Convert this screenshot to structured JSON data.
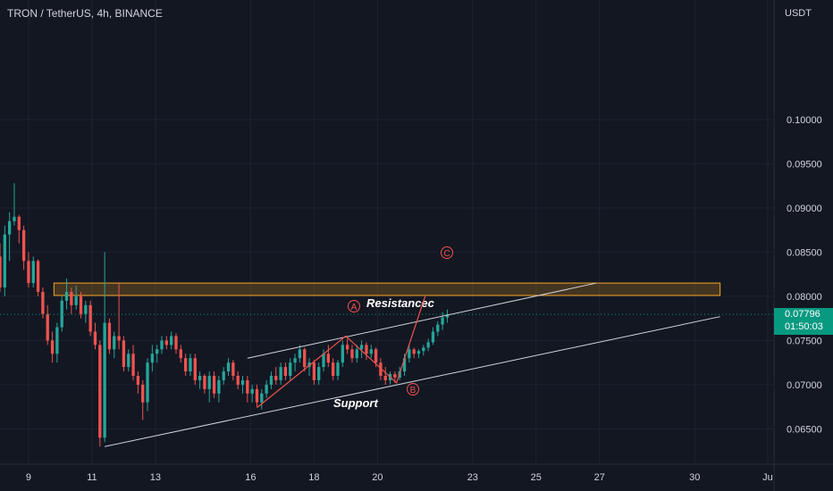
{
  "header": {
    "title": "TRON / TetherUS, 4h, BINANCE"
  },
  "axis": {
    "currency": "USDT"
  },
  "current_price": {
    "value": "0.07796",
    "countdown": "01:50:03"
  },
  "colors": {
    "background": "#131722",
    "up": "#26a69a",
    "down": "#ef5350",
    "zone": "#f5a623",
    "line": "#d1d4dc",
    "label_bg": "#089981"
  },
  "chart_data": {
    "type": "candlestick",
    "title": "TRON / TetherUS, 4h, BINANCE",
    "ylim": [
      0.061,
      0.1105
    ],
    "y_ticks": [
      "0.10000",
      "0.09500",
      "0.09000",
      "0.08500",
      "0.08000",
      "0.07500",
      "0.07000",
      "0.06500"
    ],
    "x_ticks": [
      "9",
      "11",
      "13",
      "16",
      "18",
      "20",
      "23",
      "25",
      "27",
      "30",
      "Ju"
    ],
    "x_ticks_day": [
      9,
      11,
      13,
      16,
      18,
      20,
      23,
      25,
      27,
      30,
      32.3
    ],
    "xlim": [
      8.1,
      32.5
    ],
    "candle_width_days": 0.11,
    "candles": [
      [
        8.1,
        0.0845,
        0.086,
        0.0805,
        0.081
      ],
      [
        8.25,
        0.081,
        0.088,
        0.08,
        0.087
      ],
      [
        8.4,
        0.087,
        0.0895,
        0.084,
        0.0885
      ],
      [
        8.55,
        0.0885,
        0.0928,
        0.088,
        0.089
      ],
      [
        8.7,
        0.089,
        0.0892,
        0.086,
        0.0875
      ],
      [
        8.85,
        0.0875,
        0.088,
        0.083,
        0.084
      ],
      [
        9.0,
        0.084,
        0.085,
        0.081,
        0.0815
      ],
      [
        9.15,
        0.0815,
        0.0845,
        0.081,
        0.084
      ],
      [
        9.3,
        0.084,
        0.0842,
        0.08,
        0.0805
      ],
      [
        9.45,
        0.0805,
        0.081,
        0.0775,
        0.078
      ],
      [
        9.6,
        0.078,
        0.079,
        0.0745,
        0.075
      ],
      [
        9.75,
        0.075,
        0.076,
        0.0725,
        0.0735
      ],
      [
        9.9,
        0.0735,
        0.077,
        0.0725,
        0.0765
      ],
      [
        10.05,
        0.0765,
        0.08,
        0.076,
        0.0795
      ],
      [
        10.2,
        0.0795,
        0.082,
        0.0785,
        0.0805
      ],
      [
        10.35,
        0.0805,
        0.081,
        0.078,
        0.079
      ],
      [
        10.5,
        0.079,
        0.0812,
        0.0785,
        0.08
      ],
      [
        10.65,
        0.08,
        0.0805,
        0.0775,
        0.078
      ],
      [
        10.8,
        0.078,
        0.0795,
        0.077,
        0.079
      ],
      [
        10.95,
        0.079,
        0.0795,
        0.0755,
        0.076
      ],
      [
        11.1,
        0.076,
        0.077,
        0.074,
        0.0745
      ],
      [
        11.25,
        0.0745,
        0.075,
        0.063,
        0.064
      ],
      [
        11.4,
        0.064,
        0.085,
        0.0635,
        0.077
      ],
      [
        11.55,
        0.077,
        0.0775,
        0.0735,
        0.074
      ],
      [
        11.7,
        0.074,
        0.076,
        0.073,
        0.0755
      ],
      [
        11.85,
        0.0755,
        0.0815,
        0.074,
        0.075
      ],
      [
        12.0,
        0.075,
        0.0755,
        0.0715,
        0.072
      ],
      [
        12.15,
        0.072,
        0.074,
        0.0715,
        0.0735
      ],
      [
        12.3,
        0.0735,
        0.0745,
        0.0705,
        0.071
      ],
      [
        12.45,
        0.071,
        0.0715,
        0.069,
        0.07
      ],
      [
        12.6,
        0.07,
        0.0705,
        0.066,
        0.068
      ],
      [
        12.75,
        0.068,
        0.073,
        0.067,
        0.0725
      ],
      [
        12.9,
        0.0725,
        0.0745,
        0.0715,
        0.0735
      ],
      [
        13.05,
        0.0735,
        0.0745,
        0.0725,
        0.074
      ],
      [
        13.2,
        0.074,
        0.0755,
        0.0735,
        0.075
      ],
      [
        13.35,
        0.075,
        0.0755,
        0.074,
        0.0745
      ],
      [
        13.5,
        0.0745,
        0.076,
        0.074,
        0.0755
      ],
      [
        13.65,
        0.0755,
        0.0758,
        0.0735,
        0.074
      ],
      [
        13.8,
        0.074,
        0.0745,
        0.0725,
        0.073
      ],
      [
        13.95,
        0.073,
        0.0735,
        0.071,
        0.0715
      ],
      [
        14.1,
        0.0715,
        0.0735,
        0.071,
        0.073
      ],
      [
        14.25,
        0.073,
        0.0735,
        0.07,
        0.0705
      ],
      [
        14.4,
        0.0705,
        0.0715,
        0.0695,
        0.071
      ],
      [
        14.55,
        0.071,
        0.0712,
        0.069,
        0.0695
      ],
      [
        14.7,
        0.0695,
        0.0715,
        0.068,
        0.071
      ],
      [
        14.85,
        0.071,
        0.0715,
        0.0685,
        0.069
      ],
      [
        15.0,
        0.069,
        0.071,
        0.068,
        0.0705
      ],
      [
        15.15,
        0.0705,
        0.072,
        0.07,
        0.0715
      ],
      [
        15.3,
        0.0715,
        0.073,
        0.071,
        0.0725
      ],
      [
        15.45,
        0.0725,
        0.0728,
        0.0705,
        0.071
      ],
      [
        15.6,
        0.071,
        0.0715,
        0.0695,
        0.07
      ],
      [
        15.75,
        0.07,
        0.071,
        0.069,
        0.0705
      ],
      [
        15.9,
        0.0705,
        0.071,
        0.068,
        0.069
      ],
      [
        16.05,
        0.069,
        0.07,
        0.068,
        0.0695
      ],
      [
        16.2,
        0.0695,
        0.07,
        0.0675,
        0.068
      ],
      [
        16.35,
        0.068,
        0.0695,
        0.0672,
        0.069
      ],
      [
        16.5,
        0.069,
        0.0705,
        0.0685,
        0.07
      ],
      [
        16.65,
        0.07,
        0.0715,
        0.0695,
        0.071
      ],
      [
        16.8,
        0.071,
        0.072,
        0.07,
        0.0705
      ],
      [
        16.95,
        0.0705,
        0.0725,
        0.07,
        0.072
      ],
      [
        17.1,
        0.072,
        0.0725,
        0.0705,
        0.071
      ],
      [
        17.25,
        0.071,
        0.073,
        0.0705,
        0.0725
      ],
      [
        17.4,
        0.0725,
        0.0735,
        0.0715,
        0.073
      ],
      [
        17.55,
        0.073,
        0.0745,
        0.0725,
        0.074
      ],
      [
        17.7,
        0.074,
        0.0742,
        0.0715,
        0.072
      ],
      [
        17.85,
        0.072,
        0.073,
        0.071,
        0.0725
      ],
      [
        18.0,
        0.0725,
        0.0728,
        0.07,
        0.0705
      ],
      [
        18.15,
        0.0705,
        0.0725,
        0.07,
        0.072
      ],
      [
        18.3,
        0.072,
        0.074,
        0.0715,
        0.0735
      ],
      [
        18.45,
        0.0735,
        0.0745,
        0.072,
        0.0725
      ],
      [
        18.6,
        0.0725,
        0.073,
        0.0705,
        0.071
      ],
      [
        18.75,
        0.071,
        0.0728,
        0.0705,
        0.0725
      ],
      [
        18.9,
        0.0725,
        0.075,
        0.072,
        0.0745
      ],
      [
        19.05,
        0.0745,
        0.0752,
        0.0735,
        0.074
      ],
      [
        19.2,
        0.074,
        0.0745,
        0.0725,
        0.073
      ],
      [
        19.35,
        0.073,
        0.0745,
        0.0725,
        0.074
      ],
      [
        19.5,
        0.074,
        0.075,
        0.073,
        0.0745
      ],
      [
        19.65,
        0.0745,
        0.0748,
        0.0728,
        0.0735
      ],
      [
        19.8,
        0.0735,
        0.0745,
        0.073,
        0.074
      ],
      [
        19.95,
        0.074,
        0.0742,
        0.072,
        0.0725
      ],
      [
        20.1,
        0.0725,
        0.073,
        0.0705,
        0.071
      ],
      [
        20.25,
        0.071,
        0.072,
        0.07,
        0.0705
      ],
      [
        20.4,
        0.0705,
        0.0715,
        0.07,
        0.0712
      ],
      [
        20.55,
        0.0712,
        0.0715,
        0.0702,
        0.0708
      ],
      [
        20.7,
        0.0708,
        0.072,
        0.0705,
        0.0715
      ],
      [
        20.85,
        0.0715,
        0.0735,
        0.071,
        0.073
      ],
      [
        21.0,
        0.073,
        0.0745,
        0.0725,
        0.074
      ],
      [
        21.15,
        0.074,
        0.0742,
        0.073,
        0.0735
      ],
      [
        21.3,
        0.0735,
        0.074,
        0.073,
        0.0738
      ],
      [
        21.45,
        0.0738,
        0.0745,
        0.0733,
        0.0742
      ],
      [
        21.6,
        0.0742,
        0.0752,
        0.0738,
        0.0748
      ],
      [
        21.75,
        0.0748,
        0.0765,
        0.0745,
        0.076
      ],
      [
        21.9,
        0.076,
        0.0772,
        0.0755,
        0.0768
      ],
      [
        22.05,
        0.0768,
        0.0782,
        0.0762,
        0.0776
      ],
      [
        22.2,
        0.0776,
        0.0785,
        0.077,
        0.07796
      ]
    ],
    "resistance_line": {
      "label": "Resistancec",
      "from": [
        15.9,
        0.073
      ],
      "to": [
        26.9,
        0.0815
      ]
    },
    "support_line": {
      "label": "Support",
      "from": [
        11.4,
        0.063
      ],
      "to": [
        30.8,
        0.0777
      ]
    },
    "wave": {
      "points": [
        [
          16.2,
          0.0674
        ],
        [
          19.0,
          0.0755
        ],
        [
          20.6,
          0.0702
        ],
        [
          21.5,
          0.08
        ]
      ],
      "labels": [
        "A",
        "B",
        "C"
      ]
    },
    "zone": {
      "y": [
        0.0801,
        0.0815
      ],
      "x": [
        9.8,
        30.8
      ]
    },
    "current_price_line": 0.07796
  }
}
